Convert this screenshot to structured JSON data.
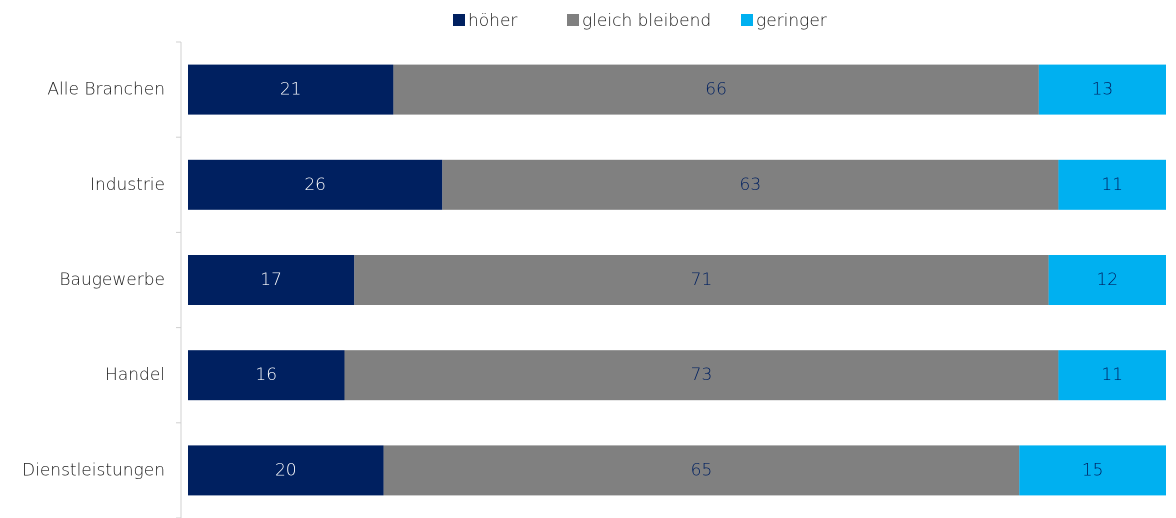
{
  "chart_data": {
    "type": "stacked_barh",
    "categories": [
      "Alle Branchen",
      "Industrie",
      "Baugewerbe",
      "Handel",
      "Dienstleistungen"
    ],
    "series": [
      {
        "name": "höher",
        "color": "#002060",
        "values": [
          21,
          26,
          17,
          16,
          20
        ]
      },
      {
        "name": "gleich bleibend",
        "color": "#808080",
        "values": [
          66,
          63,
          71,
          73,
          65
        ]
      },
      {
        "name": "geringer",
        "color": "#00b0f0",
        "values": [
          13,
          11,
          12,
          11,
          15
        ]
      }
    ],
    "xlim": [
      0,
      100
    ],
    "legend": "top"
  }
}
